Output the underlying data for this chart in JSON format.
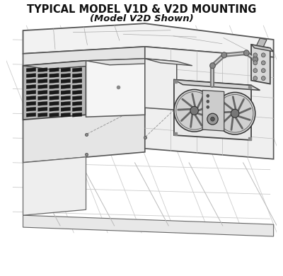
{
  "title_line1": "TYPICAL MODEL V1D & V2D MOUNTING",
  "title_line2": "(Model V2D Shown)",
  "bg_color": "#ffffff",
  "line_color": "#444444",
  "dark_color": "#111111",
  "title_fontsize": 10.5,
  "subtitle_fontsize": 9.5,
  "figsize": [
    4.0,
    3.9
  ],
  "dpi": 100
}
